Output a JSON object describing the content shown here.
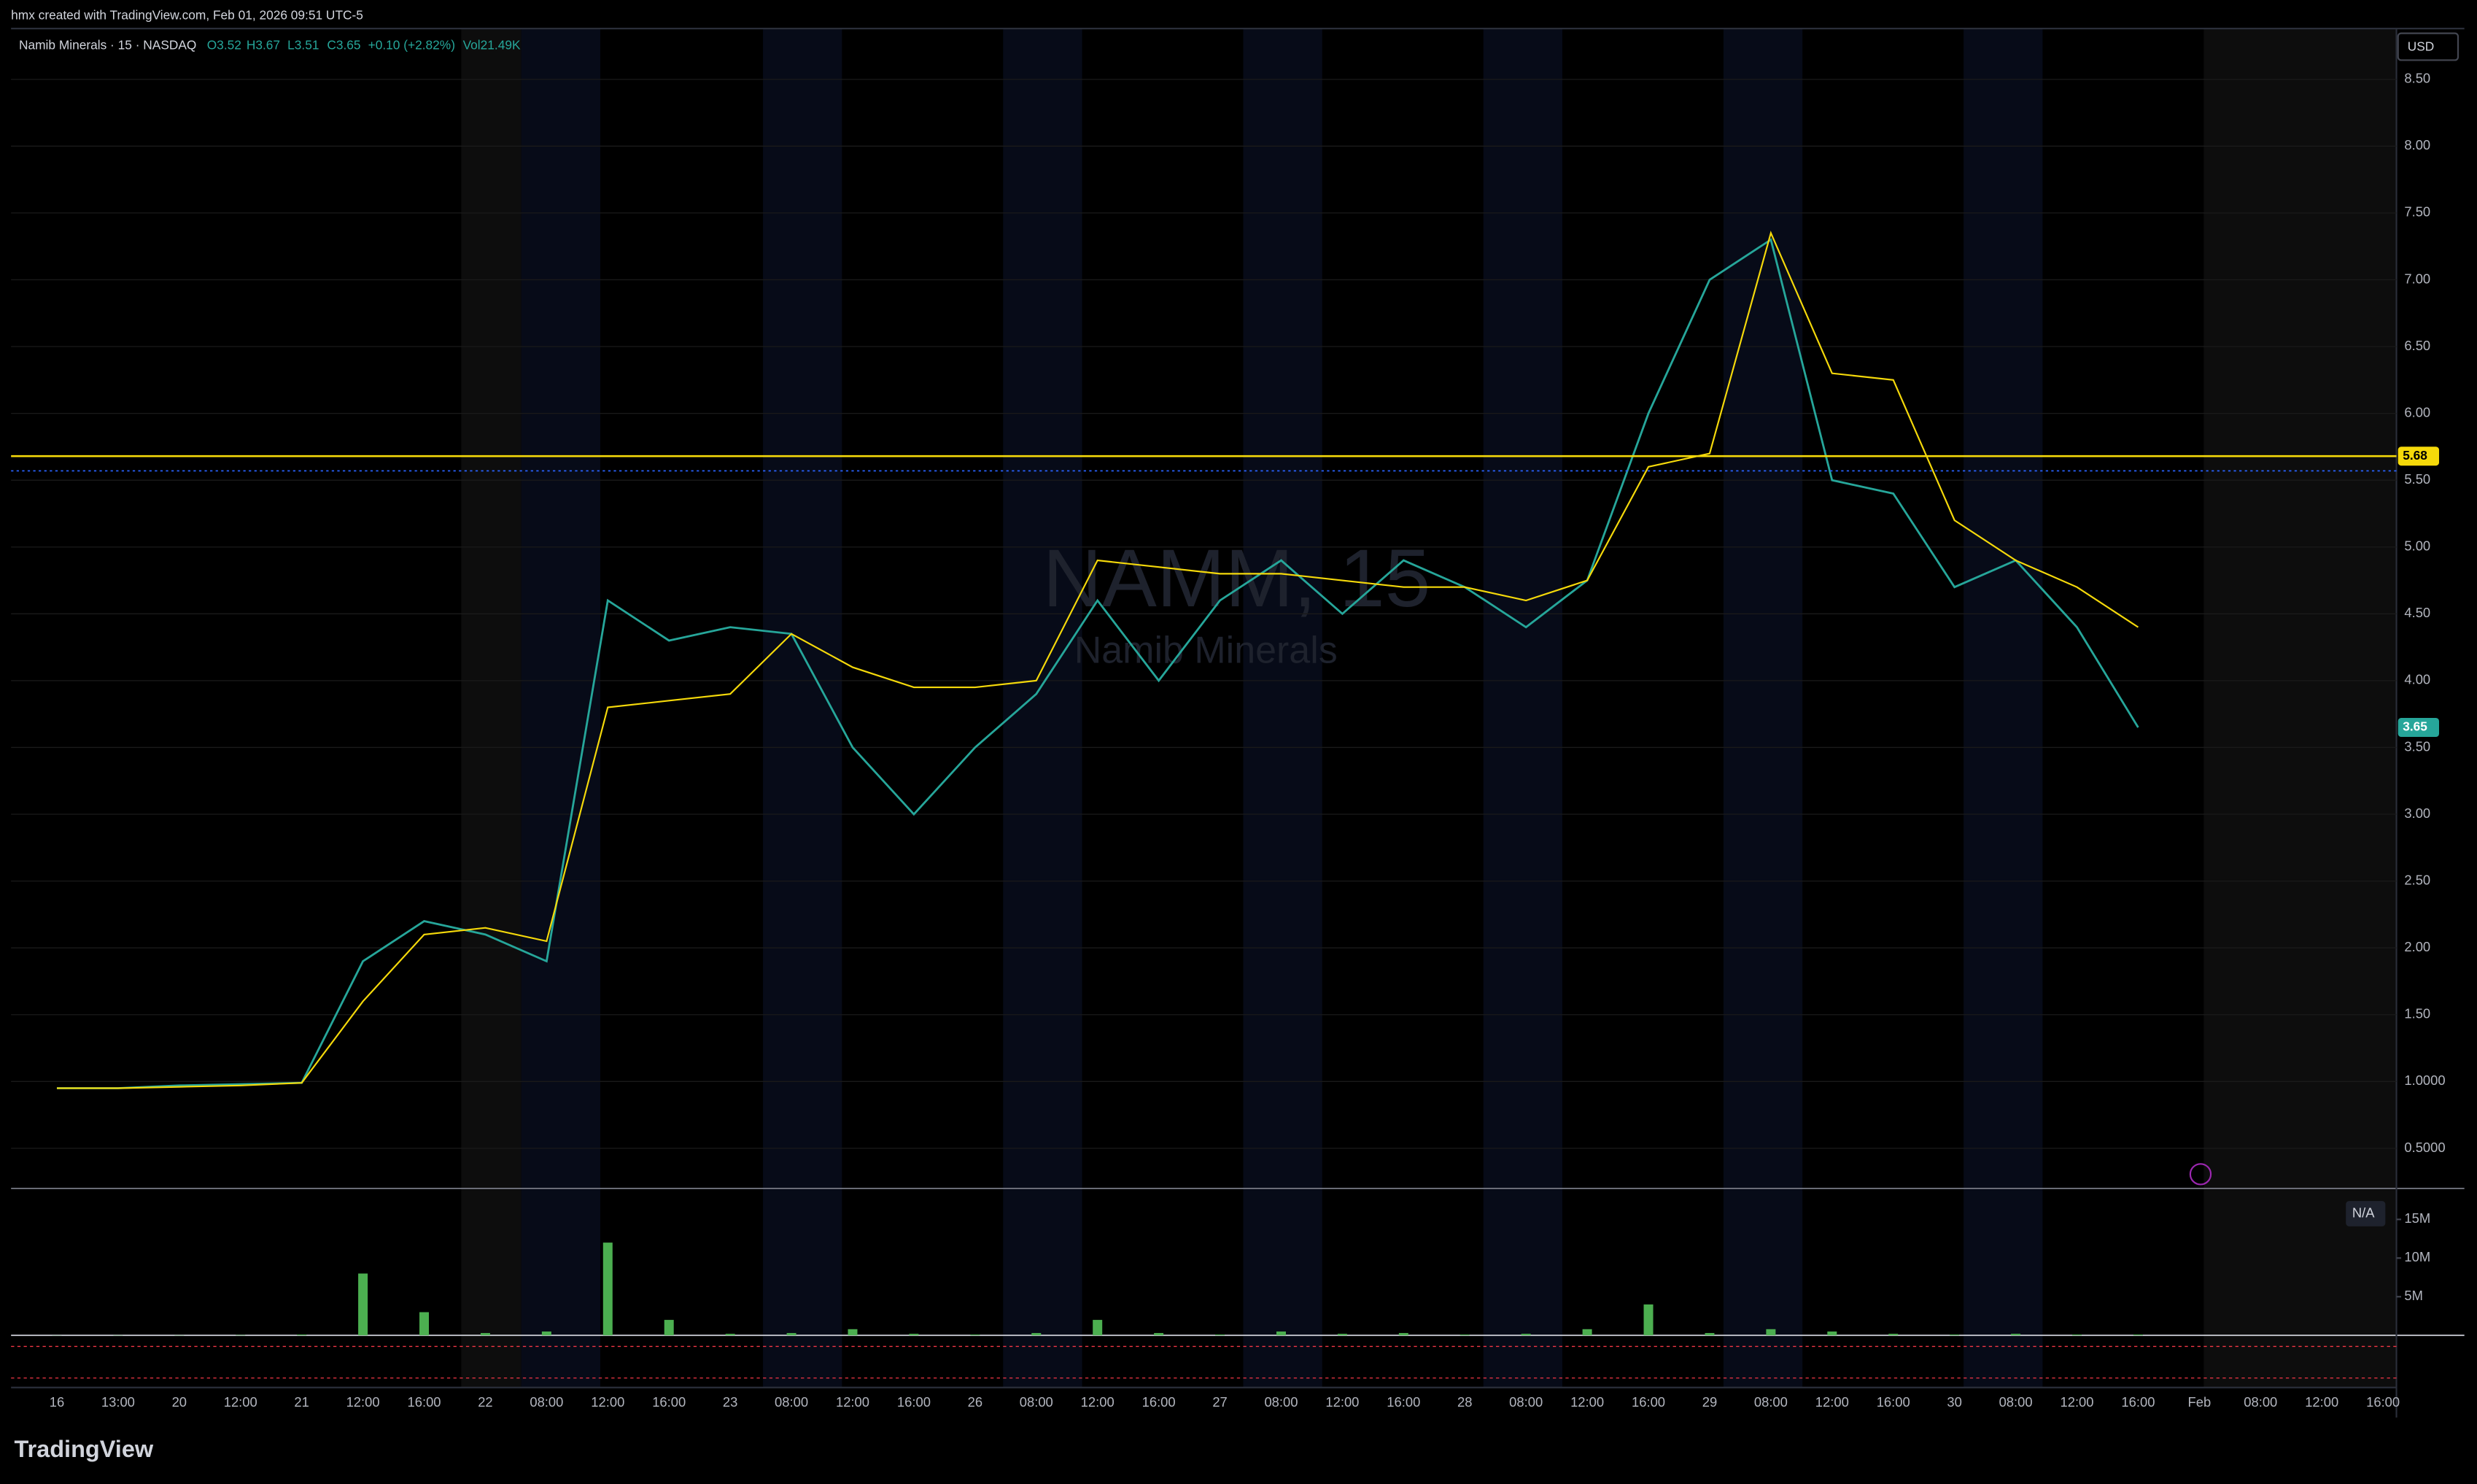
{
  "header": {
    "credit": "hmx created with TradingView.com, Feb 01, 2026 09:51 UTC-5",
    "symbol": "Namib Minerals · 15 · NASDAQ",
    "open": "O3.52",
    "high": "H3.67",
    "low": "L3.51",
    "close": "C3.65",
    "change": "+0.10 (+2.82%)",
    "volume": "Vol21.49K",
    "currency": "USD",
    "na": "N/A",
    "watermark_symbol": "NAMM, 15",
    "watermark_name": "Namib Minerals",
    "brand": "TradingView"
  },
  "chart_data": [
    {
      "type": "line",
      "categories": [
        "16",
        "13:00",
        "20",
        "12:00",
        "21",
        "12:00",
        "16:00",
        "22",
        "08:00",
        "12:00",
        "16:00",
        "23",
        "08:00",
        "12:00",
        "16:00",
        "26",
        "08:00",
        "12:00",
        "16:00",
        "27",
        "08:00",
        "12:00",
        "16:00",
        "28",
        "08:00",
        "12:00",
        "16:00",
        "29",
        "08:00",
        "12:00",
        "16:00",
        "30",
        "08:00",
        "12:00",
        "16:00",
        "Feb",
        "08:00",
        "12:00",
        "16:00"
      ],
      "series": [
        {
          "color": "#26a69a",
          "values": [
            0.95,
            0.95,
            0.97,
            0.98,
            0.99,
            1.9,
            2.2,
            2.1,
            1.9,
            4.6,
            4.3,
            4.4,
            4.35,
            3.5,
            3.0,
            3.5,
            3.9,
            4.6,
            4.0,
            4.6,
            4.9,
            4.5,
            4.9,
            4.7,
            4.4,
            4.75,
            6.0,
            7.0,
            7.3,
            5.5,
            5.4,
            4.7,
            4.9,
            4.4,
            3.65,
            null,
            null,
            null,
            null
          ]
        },
        {
          "color": "#f5d90a",
          "values": [
            0.95,
            0.95,
            0.96,
            0.97,
            0.99,
            1.6,
            2.1,
            2.15,
            2.05,
            3.8,
            3.85,
            3.9,
            4.35,
            4.1,
            3.95,
            3.95,
            4.0,
            4.9,
            4.85,
            4.8,
            4.8,
            4.75,
            4.7,
            4.7,
            4.6,
            4.75,
            5.6,
            5.7,
            7.35,
            6.3,
            6.25,
            5.2,
            4.9,
            4.7,
            4.4,
            null,
            null,
            null,
            null
          ]
        }
      ],
      "levels": [
        {
          "value": 5.68,
          "color": "#f5d90a"
        },
        {
          "value": 5.57,
          "color": "#2962ff"
        }
      ],
      "last_price": {
        "value": 3.65,
        "color": "#26a69a"
      },
      "ylim": [
        0.2,
        8.88
      ],
      "yticks": [
        {
          "value": 0.5,
          "label": "0.5000"
        },
        {
          "value": 1,
          "label": "1.0000"
        },
        {
          "value": 1.5,
          "label": "1.50"
        },
        {
          "value": 2,
          "label": "2.00"
        },
        {
          "value": 2.5,
          "label": "2.50"
        },
        {
          "value": 3,
          "label": "3.00"
        },
        {
          "value": 3.5,
          "label": "3.50"
        },
        {
          "value": 4,
          "label": "4.00"
        },
        {
          "value": 4.5,
          "label": "4.50"
        },
        {
          "value": 5,
          "label": "5.00"
        },
        {
          "value": 5.5,
          "label": "5.50"
        },
        {
          "value": 6,
          "label": "6.00"
        },
        {
          "value": 6.5,
          "label": "6.50"
        },
        {
          "value": 7,
          "label": "7.00"
        },
        {
          "value": 7.5,
          "label": "7.50"
        },
        {
          "value": 8,
          "label": "8.00"
        },
        {
          "value": 8.5,
          "label": "8.50"
        }
      ]
    },
    {
      "type": "bar",
      "color": "#4caf50",
      "values": [
        0.02,
        0.03,
        0.03,
        0.05,
        0.1,
        8,
        3,
        0.3,
        0.5,
        12,
        2,
        0.2,
        0.3,
        0.8,
        0.2,
        0.1,
        0.3,
        2,
        0.3,
        0.1,
        0.5,
        0.2,
        0.3,
        0.1,
        0.2,
        0.8,
        4,
        0.3,
        0.8,
        0.5,
        0.2,
        0.1,
        0.2,
        0.1,
        0.1,
        null,
        null,
        null,
        null
      ],
      "ylim": [
        0,
        18.4
      ],
      "yticks": [
        {
          "value": 5,
          "label": "5M"
        },
        {
          "value": 10,
          "label": "10M"
        },
        {
          "value": 15,
          "label": "15M"
        }
      ]
    }
  ]
}
